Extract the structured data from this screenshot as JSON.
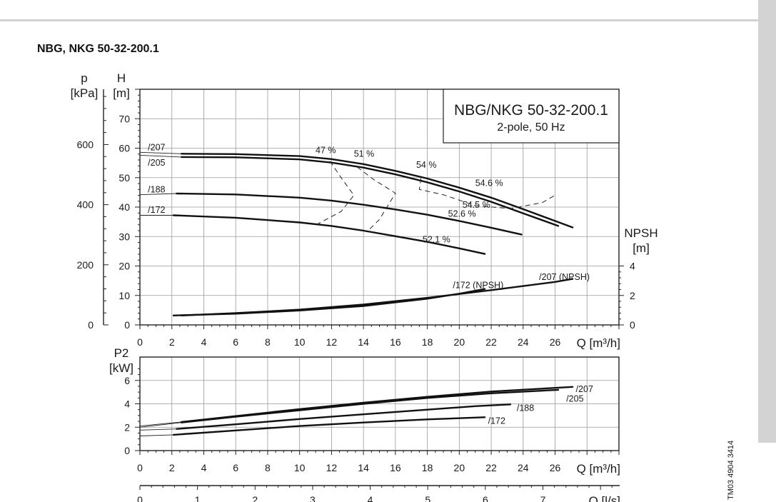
{
  "page": {
    "title": "NBG, NKG 50-32-200.1",
    "doc_code": "TM03 4904 3414"
  },
  "chart_data": [
    {
      "type": "line",
      "name": "head",
      "legend_title": "NBG/NKG 50-32-200.1",
      "legend_subtitle": "2-pole, 50 Hz",
      "xlabel": "Q [m³/h]",
      "xlim": [
        0,
        30
      ],
      "x_ticks": [
        0,
        2,
        4,
        6,
        8,
        10,
        12,
        14,
        16,
        18,
        20,
        22,
        24,
        26
      ],
      "grid": true,
      "axes": {
        "h": {
          "unit": "H",
          "unit2": "[m]",
          "lim": [
            0,
            80
          ],
          "ticks": [
            0,
            10,
            20,
            30,
            40,
            50,
            60,
            70
          ]
        },
        "p": {
          "unit": "p",
          "unit2": "[kPa]",
          "lim": [
            0,
            784
          ],
          "ticks": [
            0,
            200,
            400,
            600
          ]
        },
        "npsh": {
          "unit": "NPSH",
          "unit2": "[m]",
          "lim": [
            0,
            16
          ],
          "ticks": [
            0,
            2,
            4
          ]
        }
      },
      "series": [
        {
          "name": "/207",
          "label_x": 0.5,
          "label_y": 60.5,
          "lead": [
            [
              0,
              58.6
            ],
            [
              2.6,
              58.1
            ]
          ],
          "values": [
            [
              2.6,
              58.1
            ],
            [
              6,
              58.0
            ],
            [
              10,
              57.3
            ],
            [
              12,
              56.3
            ],
            [
              14,
              54.6
            ],
            [
              16,
              52.3
            ],
            [
              18,
              49.7
            ],
            [
              20,
              46.6
            ],
            [
              22,
              43.2
            ],
            [
              24,
              39.3
            ],
            [
              26,
              35.3
            ],
            [
              27.1,
              33.1
            ]
          ]
        },
        {
          "name": "/205",
          "label_x": 0.5,
          "label_y": 55.3,
          "lead": [
            [
              0,
              57.6
            ],
            [
              2.6,
              57.0
            ]
          ],
          "values": [
            [
              2.6,
              57.0
            ],
            [
              6,
              56.9
            ],
            [
              10,
              56.2
            ],
            [
              12,
              55.1
            ],
            [
              14,
              53.4
            ],
            [
              16,
              51.1
            ],
            [
              18,
              48.4
            ],
            [
              20,
              45.3
            ],
            [
              22,
              41.8
            ],
            [
              24,
              37.9
            ],
            [
              26.2,
              33.6
            ]
          ]
        },
        {
          "name": "/188",
          "label_x": 0.5,
          "label_y": 46.2,
          "lead": [
            [
              0,
              44.2
            ],
            [
              2.3,
              44.6
            ]
          ],
          "values": [
            [
              2.3,
              44.6
            ],
            [
              6,
              44.3
            ],
            [
              10,
              43.2
            ],
            [
              12,
              42.2
            ],
            [
              14,
              40.8
            ],
            [
              16,
              39.2
            ],
            [
              18,
              37.4
            ],
            [
              20,
              35.3
            ],
            [
              22,
              33.0
            ],
            [
              23.9,
              30.7
            ]
          ]
        },
        {
          "name": "/172",
          "label_x": 0.5,
          "label_y": 39.3,
          "lead": [
            [
              0,
              37.2
            ],
            [
              2.1,
              37.2
            ]
          ],
          "values": [
            [
              2.1,
              37.2
            ],
            [
              6,
              36.4
            ],
            [
              10,
              34.8
            ],
            [
              12,
              33.6
            ],
            [
              14,
              32.0
            ],
            [
              16,
              30.1
            ],
            [
              18,
              28.2
            ],
            [
              20,
              26.0
            ],
            [
              21.6,
              24.1
            ]
          ]
        },
        {
          "name": "/207 (NPSH)",
          "axis": "npsh",
          "label_x": 25.0,
          "label_y": 3.3,
          "values": [
            [
              2.6,
              0.64
            ],
            [
              6,
              0.8
            ],
            [
              10,
              1.04
            ],
            [
              14,
              1.38
            ],
            [
              18,
              1.84
            ],
            [
              22,
              2.36
            ],
            [
              26,
              2.92
            ],
            [
              27.1,
              3.12
            ]
          ]
        },
        {
          "name": "/172 (NPSH)",
          "axis": "npsh",
          "label_x": 19.6,
          "label_y": 2.75,
          "values": [
            [
              2.1,
              0.64
            ],
            [
              6,
              0.76
            ],
            [
              10,
              0.98
            ],
            [
              14,
              1.28
            ],
            [
              18,
              1.78
            ],
            [
              20,
              2.12
            ],
            [
              21.6,
              2.44
            ]
          ]
        }
      ],
      "efficiency": [
        {
          "label": "47 %",
          "label_x": 11.0,
          "label_y": 59.5,
          "tick_x": 11.9
        },
        {
          "label": "51 %",
          "label_x": 13.4,
          "label_y": 58.3,
          "tick_x": 13.8
        },
        {
          "label": "54 %",
          "label_x": 17.3,
          "label_y": 54.6,
          "tick_x": 17.6
        },
        {
          "label": "54.6 %",
          "label_x": 21.0,
          "label_y": 48.4,
          "tick_x": 21.9
        },
        {
          "label": "54.5 %",
          "label_x": 20.2,
          "label_y": 41.0,
          "tick_x": 20.9
        },
        {
          "label": "52.6 %",
          "label_x": 19.3,
          "label_y": 38.0,
          "tick_x": 19.9
        },
        {
          "label": "52.1 %",
          "label_x": 17.7,
          "label_y": 29.2,
          "tick_x": 18.3
        }
      ],
      "efficiency_contours": [
        {
          "label": "47 %",
          "points": [
            [
              11.9,
              55.6
            ],
            [
              12.6,
              50
            ],
            [
              13.4,
              44
            ],
            [
              12.6,
              38.5
            ],
            [
              11.0,
              33.9
            ]
          ]
        },
        {
          "label": "51 %",
          "points": [
            [
              13.6,
              53.6
            ],
            [
              14.6,
              49.5
            ],
            [
              16.0,
              44.7
            ],
            [
              15.0,
              35.8
            ],
            [
              14.3,
              32.0
            ]
          ]
        },
        {
          "label": "54 %",
          "points": [
            [
              17.6,
              49.8
            ],
            [
              17.5,
              46.0
            ],
            [
              19.0,
              44.2
            ],
            [
              21.0,
              40.5
            ],
            [
              23.2,
              39.5
            ],
            [
              25.2,
              41.5
            ],
            [
              26.0,
              44.0
            ]
          ]
        }
      ]
    },
    {
      "type": "line",
      "name": "power",
      "ylabel": "P2",
      "ylabel2": "[kW]",
      "xlabel": "Q [m³/h]",
      "xlim": [
        0,
        30
      ],
      "x_ticks": [
        0,
        2,
        4,
        6,
        8,
        10,
        12,
        14,
        16,
        18,
        20,
        22,
        24,
        26
      ],
      "ylim": [
        0,
        8
      ],
      "y_ticks": [
        0,
        2,
        4,
        6
      ],
      "grid": true,
      "series": [
        {
          "name": "/207",
          "label_x": 27.3,
          "label_y": 5.3,
          "lead": [
            [
              0,
              2.1
            ],
            [
              2.6,
              2.45
            ]
          ],
          "values": [
            [
              2.6,
              2.45
            ],
            [
              6,
              2.95
            ],
            [
              10,
              3.55
            ],
            [
              14,
              4.1
            ],
            [
              18,
              4.6
            ],
            [
              22,
              5.05
            ],
            [
              27.1,
              5.45
            ]
          ]
        },
        {
          "name": "/205",
          "label_x": 26.7,
          "label_y": 4.5,
          "lead": [
            [
              0,
              2.0
            ],
            [
              2.6,
              2.4
            ]
          ],
          "values": [
            [
              2.6,
              2.4
            ],
            [
              6,
              2.9
            ],
            [
              10,
              3.45
            ],
            [
              14,
              4.0
            ],
            [
              18,
              4.5
            ],
            [
              22,
              4.9
            ],
            [
              26.2,
              5.2
            ]
          ]
        },
        {
          "name": "/188",
          "label_x": 23.6,
          "label_y": 3.7,
          "lead": [
            [
              0,
              1.75
            ],
            [
              2.3,
              1.85
            ]
          ],
          "values": [
            [
              2.3,
              1.85
            ],
            [
              6,
              2.25
            ],
            [
              10,
              2.7
            ],
            [
              14,
              3.1
            ],
            [
              18,
              3.5
            ],
            [
              21,
              3.8
            ],
            [
              23.2,
              3.95
            ]
          ]
        },
        {
          "name": "/172",
          "label_x": 21.8,
          "label_y": 2.6,
          "lead": [
            [
              0,
              1.25
            ],
            [
              2.1,
              1.35
            ]
          ],
          "values": [
            [
              2.1,
              1.35
            ],
            [
              6,
              1.72
            ],
            [
              10,
              2.1
            ],
            [
              14,
              2.4
            ],
            [
              18,
              2.67
            ],
            [
              21.6,
              2.85
            ]
          ]
        }
      ]
    }
  ],
  "flow_axis": {
    "xlabel": "Q [l/s]",
    "ticks": [
      0,
      1,
      2,
      3,
      4,
      5,
      6,
      7
    ],
    "lim": [
      0,
      8.333
    ]
  }
}
